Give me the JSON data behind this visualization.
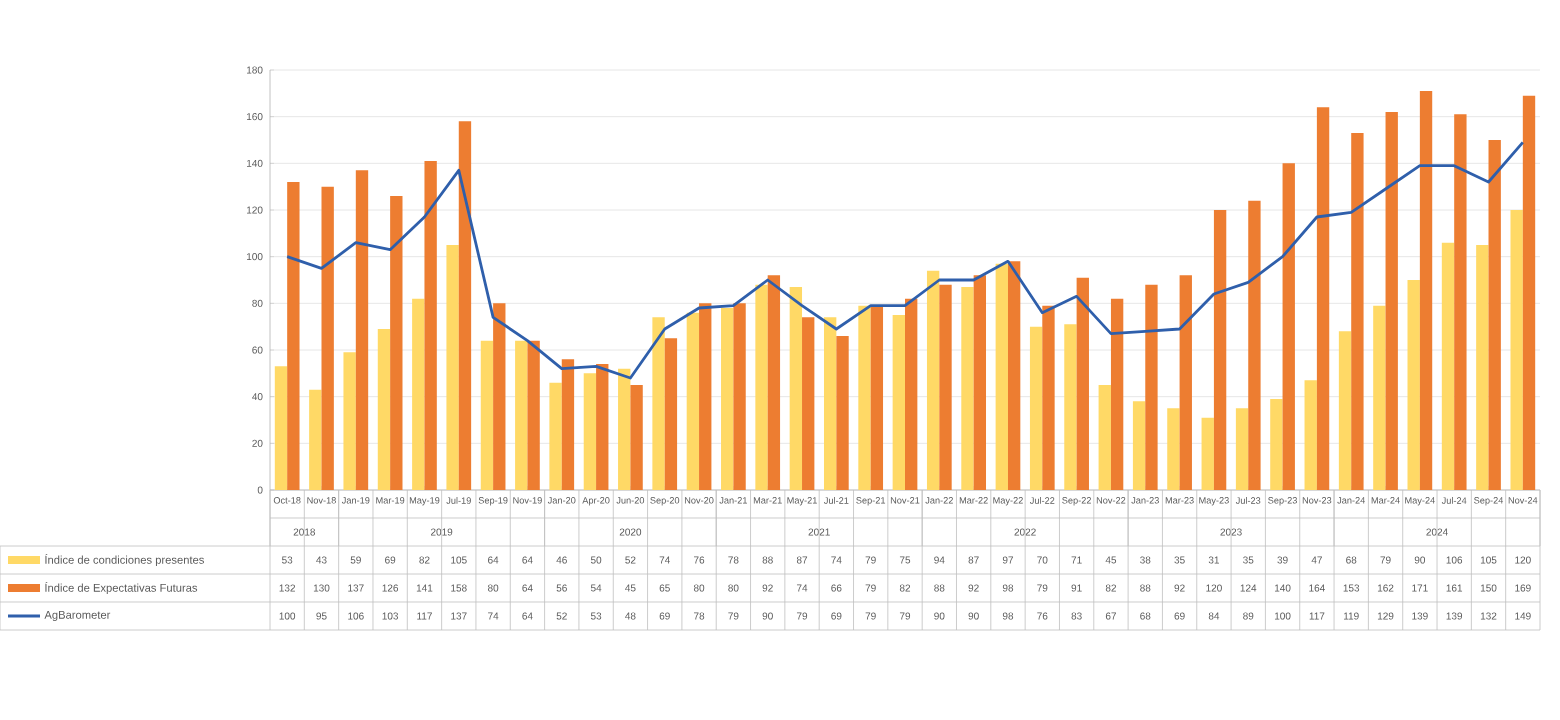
{
  "chart_data": {
    "type": "bar",
    "categories": [
      "Oct-18",
      "Nov-18",
      "Jan-19",
      "Mar-19",
      "May-19",
      "Jul-19",
      "Sep-19",
      "Nov-19",
      "Jan-20",
      "Apr-20",
      "Jun-20",
      "Sep-20",
      "Nov-20",
      "Jan-21",
      "Mar-21",
      "May-21",
      "Jul-21",
      "Sep-21",
      "Nov-21",
      "Jan-22",
      "Mar-22",
      "May-22",
      "Jul-22",
      "Sep-22",
      "Nov-22",
      "Jan-23",
      "Mar-23",
      "May-23",
      "Jul-23",
      "Sep-23",
      "Nov-23",
      "Jan-24",
      "Mar-24",
      "May-24",
      "Jul-24",
      "Sep-24",
      "Nov-24"
    ],
    "series": [
      {
        "name": "Índice de condiciones presentes",
        "color": "#ffd966",
        "values": [
          53,
          43,
          59,
          69,
          82,
          105,
          64,
          64,
          46,
          50,
          52,
          74,
          76,
          78,
          88,
          87,
          74,
          79,
          75,
          94,
          87,
          97,
          70,
          71,
          45,
          38,
          35,
          31,
          35,
          39,
          47,
          68,
          79,
          90,
          106,
          105,
          120
        ]
      },
      {
        "name": "Índice de Expectativas Futuras",
        "color": "#ed7d31",
        "values": [
          132,
          130,
          137,
          126,
          141,
          158,
          80,
          64,
          56,
          54,
          45,
          65,
          80,
          80,
          92,
          74,
          66,
          79,
          82,
          88,
          92,
          98,
          79,
          91,
          82,
          88,
          92,
          120,
          124,
          140,
          164,
          153,
          162,
          171,
          161,
          150,
          169
        ]
      },
      {
        "name": "AgBarometer",
        "type": "line",
        "color": "#2f5fab",
        "values": [
          100,
          95,
          106,
          103,
          117,
          137,
          74,
          64,
          52,
          53,
          48,
          69,
          78,
          79,
          90,
          79,
          69,
          79,
          79,
          90,
          90,
          98,
          76,
          83,
          67,
          68,
          69,
          84,
          89,
          100,
          117,
          119,
          129,
          139,
          139,
          132,
          149
        ]
      }
    ],
    "ylim": [
      0,
      180
    ],
    "yticks": [
      0,
      20,
      40,
      60,
      80,
      100,
      120,
      140,
      160,
      180
    ],
    "grid": "y",
    "legend": "bottom",
    "data_labels": true,
    "annotations": [
      "2018",
      "2019",
      "2020",
      "2021",
      "2022",
      "2023",
      "2024"
    ]
  }
}
